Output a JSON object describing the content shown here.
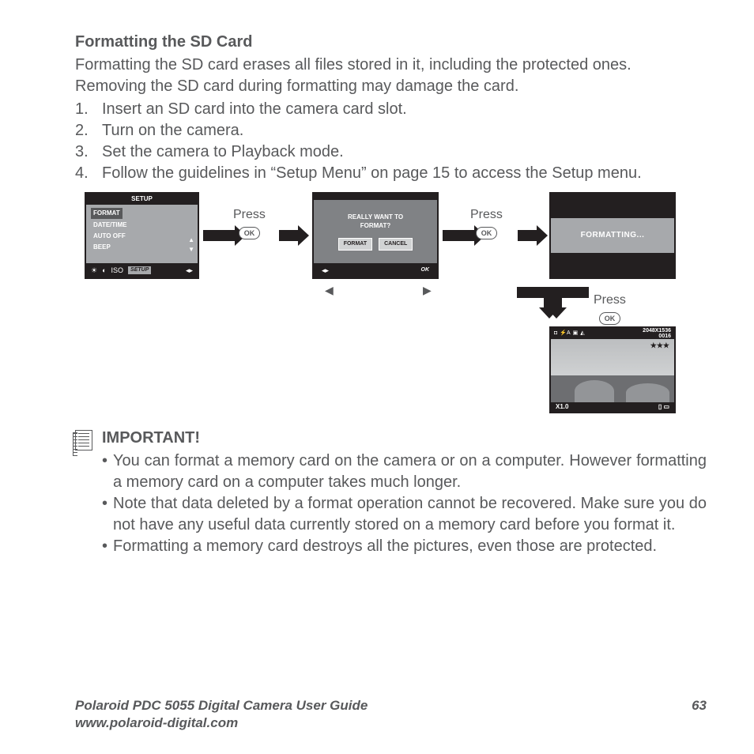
{
  "section_title": "Formatting the SD Card",
  "intro": "Formatting the SD card erases all files stored in it, including the protected ones. Removing the SD card during formatting may damage the card.",
  "steps": [
    "Insert an SD card into the camera card slot.",
    "Turn on the camera.",
    "Set the camera to Playback mode.",
    "Follow the guidelines in “Setup Menu” on page 15 to access the Setup menu."
  ],
  "press_label": "Press",
  "ok_label": "OK",
  "screen1": {
    "title": "SETUP",
    "items": [
      "FORMAT",
      "DATE/TIME",
      "AUTO OFF",
      "BEEP"
    ],
    "iso_label": "ISO",
    "setup_tab": "SETUP"
  },
  "screen2": {
    "question_l1": "REALLY WANT TO",
    "question_l2": "FORMAT?",
    "btn_format": "FORMAT",
    "btn_cancel": "CANCEL",
    "ok": "OK"
  },
  "screen3": {
    "text": "FORMATTING..."
  },
  "screen4": {
    "flash": "⚡A",
    "res": "2048X1536",
    "count": "0016",
    "stars": "★★★",
    "zoom": "X1.0"
  },
  "important_title": "IMPORTANT!",
  "important_notes": [
    "You can format a memory card on the camera or on a computer. However formatting a memory card on a computer takes much longer.",
    "Note that data deleted by a format operation cannot be recovered. Make sure you do not have any useful data currently stored on a memory card before you format it.",
    "Formatting a memory card destroys all the pictures, even those are protected."
  ],
  "footer_title": "Polaroid PDC 5055 Digital Camera User Guide",
  "footer_url": "www.polaroid-digital.com",
  "page_number": "63",
  "colors": {
    "text": "#58595b",
    "black": "#231f20",
    "gray": "#a7a9ac",
    "darkgray": "#808285"
  }
}
